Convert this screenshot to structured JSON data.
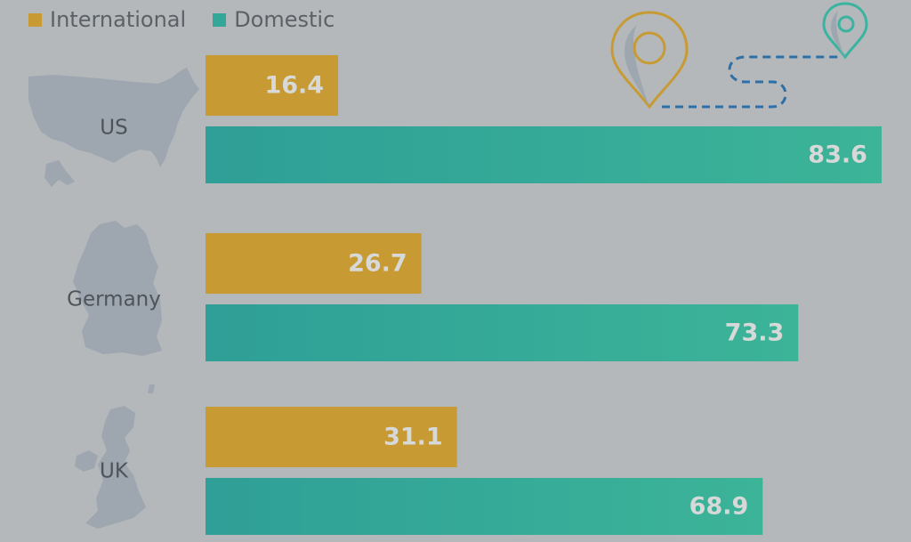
{
  "chart_data": {
    "type": "bar",
    "orientation": "horizontal",
    "categories": [
      "US",
      "Germany",
      "UK"
    ],
    "series": [
      {
        "name": "International",
        "values": [
          16.4,
          26.7,
          31.1
        ],
        "color": "#c89a33"
      },
      {
        "name": "Domestic",
        "values": [
          83.6,
          73.3,
          68.9
        ],
        "color": "#33a898"
      }
    ],
    "xlim": [
      0,
      100
    ],
    "grid": false,
    "legend": "top-left",
    "map_color": "#9ea6b0",
    "pin_colors": [
      "#c89a33",
      "#3ab3a0"
    ],
    "route_color": "#2d6fa7"
  }
}
